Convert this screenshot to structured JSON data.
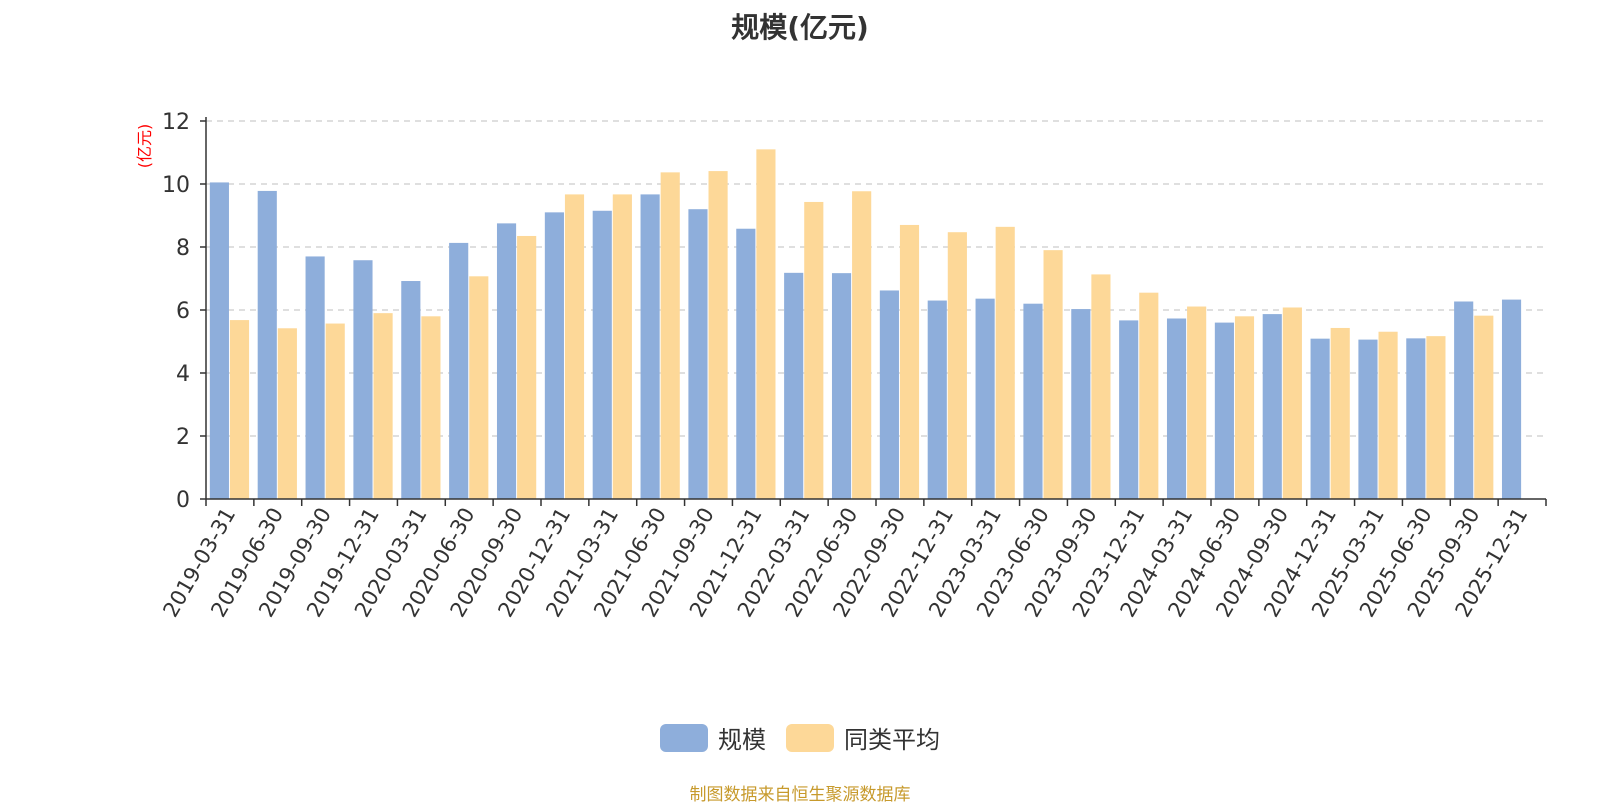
{
  "chart_data": {
    "type": "bar",
    "title": "规模(亿元)",
    "ylabel": "(亿元)",
    "xlabel": "",
    "ylim": [
      0,
      12
    ],
    "yticks": [
      0,
      2,
      4,
      6,
      8,
      10,
      12
    ],
    "grid": true,
    "legend_position": "bottom",
    "categories": [
      "2019-03-31",
      "2019-06-30",
      "2019-09-30",
      "2019-12-31",
      "2020-03-31",
      "2020-06-30",
      "2020-09-30",
      "2020-12-31",
      "2021-03-31",
      "2021-06-30",
      "2021-09-30",
      "2021-12-31",
      "2022-03-31",
      "2022-06-30",
      "2022-09-30",
      "2022-12-31",
      "2023-03-31",
      "2023-06-30",
      "2023-09-30",
      "2023-12-31",
      "2024-03-31",
      "2024-06-30",
      "2024-09-30",
      "2024-12-31",
      "2025-03-31",
      "2025-06-30",
      "2025-09-30",
      "2025-12-31"
    ],
    "series": [
      {
        "name": "规模",
        "color": "#8eaedb",
        "values": [
          10.05,
          9.78,
          7.7,
          7.58,
          6.92,
          8.13,
          8.75,
          9.1,
          9.15,
          9.67,
          9.2,
          8.58,
          7.18,
          7.17,
          6.62,
          6.3,
          6.36,
          6.2,
          6.03,
          5.67,
          5.73,
          5.6,
          5.87,
          5.09,
          5.06,
          5.1,
          6.27,
          6.33
        ]
      },
      {
        "name": "同类平均",
        "color": "#fdd898",
        "values": [
          5.68,
          5.42,
          5.57,
          5.9,
          5.8,
          7.07,
          8.35,
          9.67,
          9.67,
          10.37,
          10.41,
          11.1,
          9.43,
          9.77,
          8.7,
          8.47,
          8.64,
          7.9,
          7.13,
          6.55,
          6.11,
          5.8,
          6.08,
          5.43,
          5.31,
          5.17,
          5.82,
          null
        ]
      }
    ]
  },
  "source_text": "制图数据来自恒生聚源数据库",
  "colors": {
    "axis": "#333333",
    "grid": "#cccccc",
    "ylabel": "#ff0000",
    "source": "#c79a2c"
  }
}
